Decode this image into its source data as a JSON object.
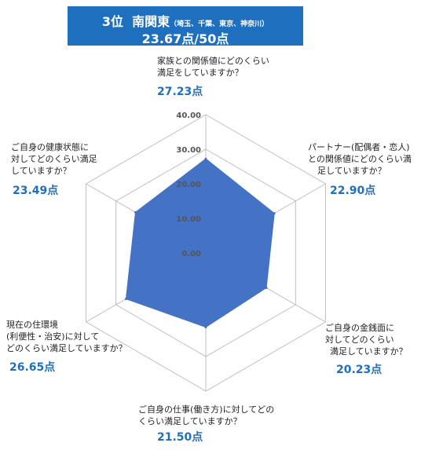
{
  "header": {
    "rank": "3位",
    "region": "南関東",
    "prefectures": "（埼玉、千葉、東京、神奈川）",
    "total_score": "23.67点/50点"
  },
  "chart_data": {
    "type": "radar",
    "rmin": 0,
    "rmax": 40,
    "ticks": [
      0,
      10,
      20,
      30,
      40
    ],
    "tick_labels": [
      "0.00",
      "10.00",
      "20.00",
      "30.00",
      "40.00"
    ],
    "fill_color": "#4472c4",
    "grid": true,
    "axes": [
      {
        "lines": [
          "家族との関係値にどのくらい",
          "満足をしていますか？"
        ],
        "value": 27.23,
        "score_label": "27.23点"
      },
      {
        "lines": [
          "パートナー(配偶者・恋人)",
          "との関係値にどのくらい満",
          "足していますか？"
        ],
        "value": 22.9,
        "score_label": "22.90点"
      },
      {
        "lines": [
          "ご自身の金銭面に",
          "対してどのくらい",
          "満足していますか？"
        ],
        "value": 20.23,
        "score_label": "20.23点"
      },
      {
        "lines": [
          "ご自身の仕事(働き方)に対してどの",
          "くらい満足していますか？"
        ],
        "value": 21.5,
        "score_label": "21.50点"
      },
      {
        "lines": [
          "現在の住環境",
          "(利便性・治安)に対して",
          "どのくらい満足していますか？"
        ],
        "value": 26.65,
        "score_label": "26.65点"
      },
      {
        "lines": [
          "ご自身の健康状態に",
          "対してどのくらい満足",
          "していますか？"
        ],
        "value": 23.49,
        "score_label": "23.49点"
      }
    ]
  }
}
